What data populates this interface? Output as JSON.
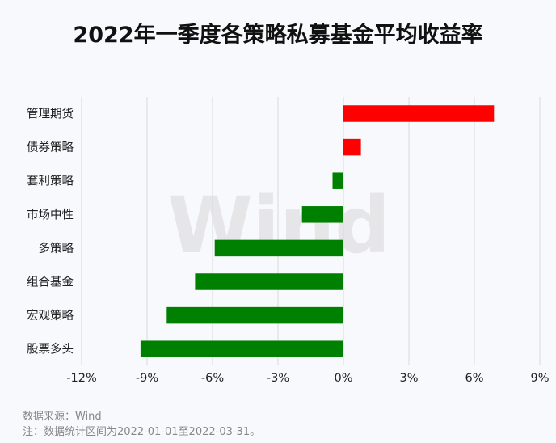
{
  "chart_data": {
    "type": "bar",
    "orientation": "horizontal",
    "title": "2022年一季度各策略私募基金平均收益率",
    "categories": [
      "管理期货",
      "债券策略",
      "套利策略",
      "市场中性",
      "多策略",
      "组合基金",
      "宏观策略",
      "股票多头"
    ],
    "values": [
      6.9,
      0.8,
      -0.5,
      -1.9,
      -5.9,
      -6.8,
      -8.1,
      -9.3
    ],
    "xlim": [
      -12,
      9
    ],
    "xticks": [
      -12,
      -9,
      -6,
      -3,
      0,
      3,
      6,
      9
    ],
    "xtick_labels": [
      "-12%",
      "-9%",
      "-6%",
      "-3%",
      "0%",
      "3%",
      "6%",
      "9%"
    ],
    "grid": "vertical",
    "colors": {
      "positive": "#ff0000",
      "negative": "#008000",
      "grid": "#d9d9d9"
    }
  },
  "watermark": "Wind",
  "notes": {
    "source": "数据来源：Wind",
    "period": "注：数据统计区间为2022-01-01至2022-03-31。"
  }
}
